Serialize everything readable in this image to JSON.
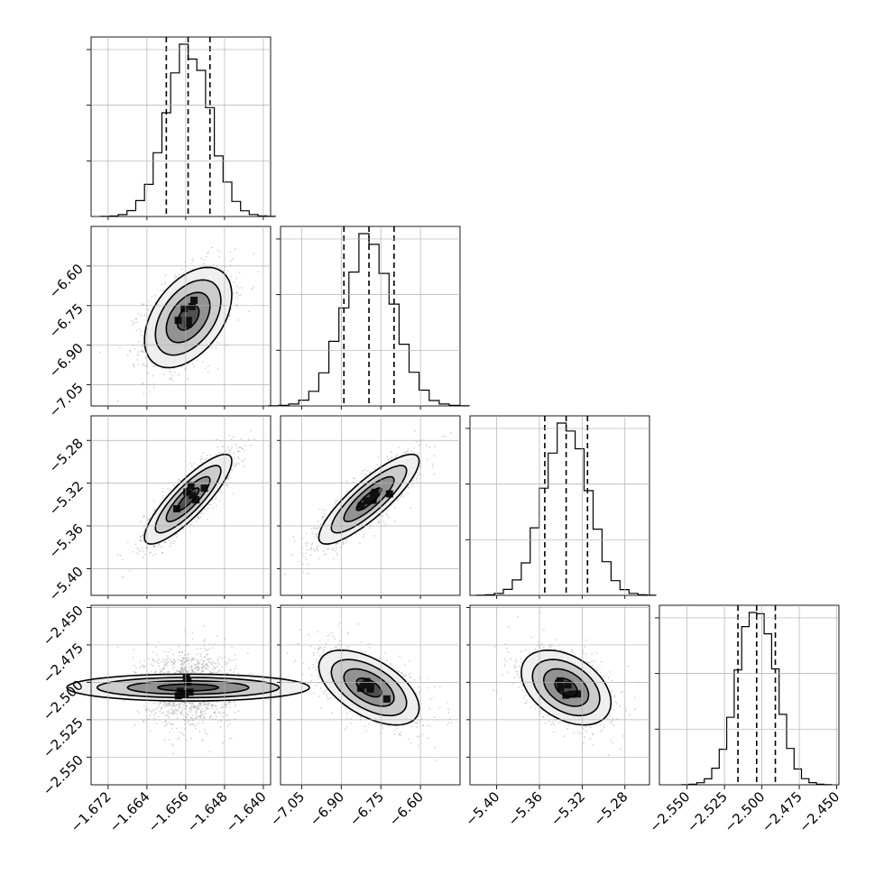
{
  "chart_data": {
    "type": "corner",
    "grid": true,
    "parameters": [
      {
        "mean": -1.6555,
        "sigma": 0.0045,
        "range": [
          -1.6755,
          -1.6385
        ],
        "ticks": [
          -1.672,
          -1.664,
          -1.656,
          -1.648,
          -1.64
        ],
        "tick_labels": [
          "−1.672",
          "−1.664",
          "−1.656",
          "−1.648",
          "−1.640"
        ]
      },
      {
        "mean": -6.795,
        "sigma": 0.095,
        "range": [
          -7.13,
          -6.45
        ],
        "ticks": [
          -7.05,
          -6.9,
          -6.75,
          -6.6
        ],
        "tick_labels": [
          "−7.05",
          "−6.90",
          "−6.75",
          "−6.60"
        ]
      },
      {
        "mean": -5.335,
        "sigma": 0.021,
        "range": [
          -5.425,
          -5.257
        ],
        "ticks": [
          -5.4,
          -5.36,
          -5.32,
          -5.28
        ],
        "tick_labels": [
          "−5.40",
          "−5.36",
          "−5.32",
          "−5.28"
        ]
      },
      {
        "mean": -2.5035,
        "sigma": 0.0125,
        "range": [
          -2.5685,
          -2.4485
        ],
        "ticks": [
          -2.55,
          -2.525,
          -2.5,
          -2.475,
          -2.45
        ],
        "tick_labels": [
          "−2.550",
          "−2.525",
          "−2.500",
          "−2.475",
          "−2.450"
        ]
      }
    ],
    "quantiles": [
      0.16,
      0.5,
      0.84
    ],
    "histograms": [
      {
        "quantile_values": [
          -1.66,
          -1.6555,
          -1.651
        ]
      },
      {
        "quantile_values": [
          -6.89,
          -6.795,
          -6.7
        ]
      },
      {
        "quantile_values": [
          -5.355,
          -5.335,
          -5.315
        ]
      },
      {
        "quantile_values": [
          -2.516,
          -2.5035,
          -2.491
        ]
      }
    ],
    "correlations": [
      {
        "pair": [
          0,
          1
        ],
        "rho": 0.45
      },
      {
        "pair": [
          0,
          2
        ],
        "rho": 0.85
      },
      {
        "pair": [
          1,
          2
        ],
        "rho": 0.85
      },
      {
        "pair": [
          0,
          3
        ],
        "rho": 0.0
      },
      {
        "pair": [
          1,
          3
        ],
        "rho": -0.55
      },
      {
        "pair": [
          2,
          3
        ],
        "rho": -0.4
      }
    ],
    "contour_levels_sigma": [
      0.5,
      1.0,
      1.5,
      2.0
    ],
    "hist_bins": 20
  }
}
